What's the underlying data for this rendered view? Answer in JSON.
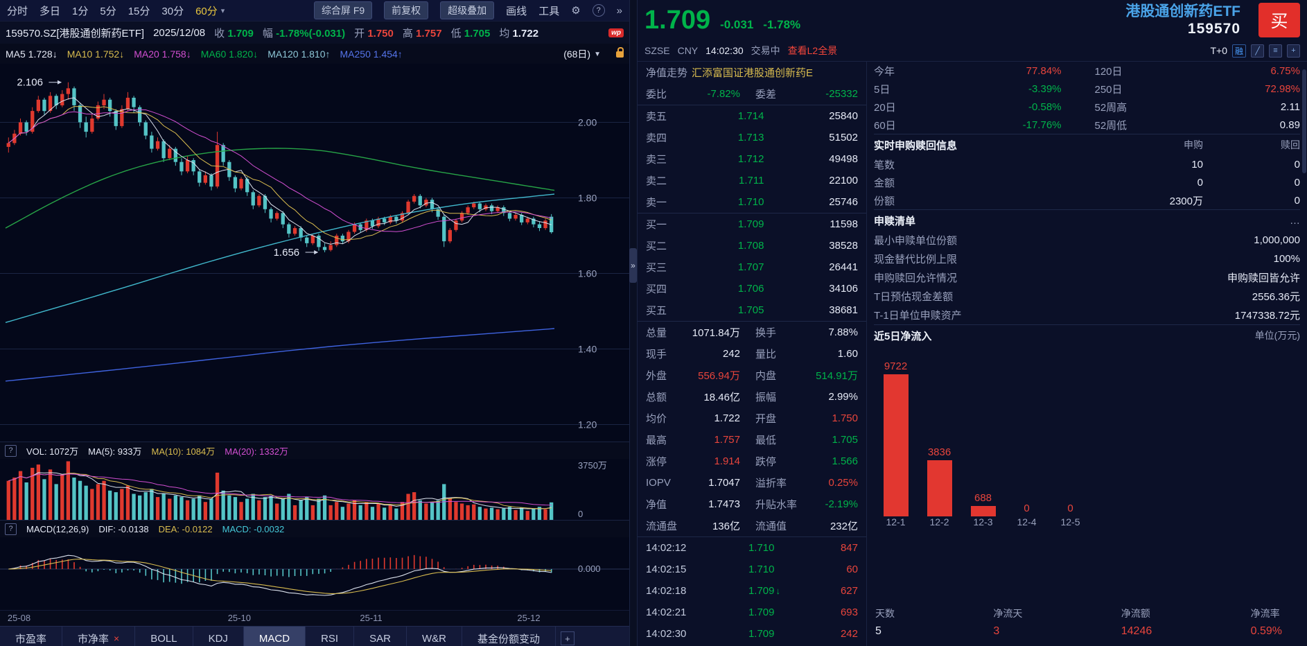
{
  "colors": {
    "up_red": "#e0392e",
    "down_text_green": "#00b34a",
    "candle_down_cyan": "#54c4c6",
    "yellow": "#d9bc4f",
    "magenta": "#d24fd2",
    "ma250_blue": "#3f63e0",
    "ma120_cyan": "#41b9cd",
    "ma60_green": "#27a447",
    "name_blue": "#4aa3e8",
    "buy_button_red": "#e22f2a",
    "background": "#0b1026"
  },
  "toolbar": {
    "periods": [
      "分时",
      "多日",
      "1分",
      "5分",
      "15分",
      "30分",
      "60分"
    ],
    "caret": "▾",
    "buttons": [
      "综合屏 F9",
      "前复权",
      "超级叠加"
    ],
    "links": [
      "画线",
      "工具"
    ],
    "gear": "⚙",
    "help": "?",
    "more": "»"
  },
  "infobar": {
    "symbol": "159570.SZ[港股通创新药ETF]",
    "date": "2025/12/08",
    "close_label": "收",
    "close": "1.709",
    "chg_label": "幅",
    "chg": "-1.78%(-0.031)",
    "open_label": "开",
    "open": "1.750",
    "high_label": "高",
    "high": "1.757",
    "low_label": "低",
    "low": "1.705",
    "avg_label": "均",
    "avg": "1.722",
    "wp_badge": "wp"
  },
  "ma_bar": {
    "ma5": "MA5 1.728↓",
    "ma10": "MA10 1.752↓",
    "ma20": "MA20 1.758↓",
    "ma60": "MA60 1.820↓",
    "ma120": "MA120 1.810↑",
    "ma250": "MA250 1.454↑",
    "range": "(68日)",
    "range_caret": "▼"
  },
  "vol_header": {
    "help": "?",
    "vol": "VOL: 1072万",
    "ma5": "MA(5): 933万",
    "ma10": "MA(10): 1084万",
    "ma20": "MA(20): 1332万",
    "scale_top": "3750万",
    "scale_zero": "0"
  },
  "macd_header": {
    "help": "?",
    "formula": "MACD(12,26,9)",
    "dif": "DIF: -0.0138",
    "dea": "DEA: -0.0122",
    "macd": "MACD: -0.0032",
    "scale_zero": "0.000"
  },
  "x_labels": [
    {
      "text": "25-08",
      "f": 0.012
    },
    {
      "text": "25-10",
      "f": 0.362
    },
    {
      "text": "25-11",
      "f": 0.572
    },
    {
      "text": "25-12",
      "f": 0.822
    }
  ],
  "tabs": {
    "items": [
      "市盈率",
      "市净率",
      "BOLL",
      "KDJ",
      "MACD",
      "RSI",
      "SAR",
      "W&R",
      "基金份额变动"
    ],
    "active": "MACD",
    "close_x": "×",
    "add": "+"
  },
  "quote": {
    "price": "1.709",
    "change": "-0.031",
    "change_pct": "-1.78%",
    "name": "港股通创新药ETF",
    "code": "159570",
    "buy_label": "买",
    "exchange": "SZSE",
    "currency": "CNY",
    "time": "14:02:30",
    "status": "交易中",
    "l2_link": "查看L2全景",
    "t0": "T+0",
    "rong": "融"
  },
  "book": {
    "nav_label": "净值走势",
    "nav_value": "汇添富国证港股通创新药E",
    "wb_label": "委比",
    "wb": "-7.82%",
    "wc_label": "委差",
    "wc": "-25332",
    "sells": [
      {
        "l": "卖五",
        "p": "1.714",
        "v": "25840"
      },
      {
        "l": "卖四",
        "p": "1.713",
        "v": "51502"
      },
      {
        "l": "卖三",
        "p": "1.712",
        "v": "49498"
      },
      {
        "l": "卖二",
        "p": "1.711",
        "v": "22100"
      },
      {
        "l": "卖一",
        "p": "1.710",
        "v": "25746"
      }
    ],
    "buys": [
      {
        "l": "买一",
        "p": "1.709",
        "v": "11598"
      },
      {
        "l": "买二",
        "p": "1.708",
        "v": "38528"
      },
      {
        "l": "买三",
        "p": "1.707",
        "v": "26441"
      },
      {
        "l": "买四",
        "p": "1.706",
        "v": "34106"
      },
      {
        "l": "买五",
        "p": "1.705",
        "v": "38681"
      }
    ]
  },
  "stats": [
    {
      "l1": "总量",
      "v1": "1071.84万",
      "l2": "换手",
      "v2": "7.88%"
    },
    {
      "l1": "现手",
      "v1": "242",
      "l2": "量比",
      "v2": "1.60"
    },
    {
      "l1": "外盘",
      "v1": "556.94万",
      "l2": "内盘",
      "v2": "514.91万"
    },
    {
      "l1": "总额",
      "v1": "18.46亿",
      "l2": "振幅",
      "v2": "2.99%"
    },
    {
      "l1": "均价",
      "v1": "1.722",
      "l2": "开盘",
      "v2": "1.750"
    },
    {
      "l1": "最高",
      "v1": "1.757",
      "l2": "最低",
      "v2": "1.705"
    },
    {
      "l1": "涨停",
      "v1": "1.914",
      "l2": "跌停",
      "v2": "1.566"
    },
    {
      "l1": "IOPV",
      "v1": "1.7047",
      "l2": "溢折率",
      "v2": "0.25%"
    },
    {
      "l1": "净值",
      "v1": "1.7473",
      "l2": "升贴水率",
      "v2": "-2.19%"
    },
    {
      "l1": "流通盘",
      "v1": "136亿",
      "l2": "流通值",
      "v2": "232亿"
    }
  ],
  "ticks": [
    {
      "t": "14:02:12",
      "p": "1.710",
      "arrow": "",
      "v": "847"
    },
    {
      "t": "14:02:15",
      "p": "1.710",
      "arrow": "",
      "v": "60"
    },
    {
      "t": "14:02:18",
      "p": "1.709",
      "arrow": "↓",
      "v": "627"
    },
    {
      "t": "14:02:21",
      "p": "1.709",
      "arrow": "",
      "v": "693"
    },
    {
      "t": "14:02:30",
      "p": "1.709",
      "arrow": "",
      "v": "242"
    }
  ],
  "returns": [
    {
      "l1": "今年",
      "v1": "77.84%",
      "l2": "120日",
      "v2": "6.75%"
    },
    {
      "l1": "5日",
      "v1": "-3.39%",
      "l2": "250日",
      "v2": "72.98%"
    },
    {
      "l1": "20日",
      "v1": "-0.58%",
      "l2": "52周高",
      "v2": "2.11"
    },
    {
      "l1": "60日",
      "v1": "-17.76%",
      "l2": "52周低",
      "v2": "0.89"
    }
  ],
  "subscription": {
    "title": "实时申购赎回信息",
    "col_a": "申购",
    "col_b": "赎回",
    "rows": [
      {
        "l": "笔数",
        "a": "10",
        "b": "0"
      },
      {
        "l": "金额",
        "a": "0",
        "b": "0"
      },
      {
        "l": "份额",
        "a": "2300万",
        "b": "0"
      }
    ]
  },
  "redemption": {
    "title": "申赎清单",
    "more": "…",
    "rows": [
      {
        "l": "最小申赎单位份额",
        "v": "1,000,000"
      },
      {
        "l": "现金替代比例上限",
        "v": "100%"
      },
      {
        "l": "申购赎回允许情况",
        "v": "申购赎回皆允许"
      },
      {
        "l": "T日预估现金差额",
        "v": "2556.36元"
      },
      {
        "l": "T-1日单位申赎资产",
        "v": "1747338.72元"
      }
    ]
  },
  "flows": {
    "title": "近5日净流入",
    "unit": "单位(万元)",
    "categories": [
      "12-1",
      "12-2",
      "12-3",
      "12-4",
      "12-5"
    ],
    "values": [
      9722,
      3836,
      688,
      0,
      0
    ]
  },
  "flow_stats": [
    {
      "l": "天数",
      "v": "5"
    },
    {
      "l": "净流天",
      "v": "3"
    },
    {
      "l": "净流额",
      "v": "14246"
    },
    {
      "l": "净流率",
      "v": "0.59%"
    }
  ],
  "chart_data": {
    "type": "candlestick",
    "title": "159570.SZ 港股通创新药ETF 60分K线",
    "price_range": [
      1.155,
      2.155
    ],
    "gridlines": [
      1.2,
      1.4,
      1.6,
      1.8,
      2.0
    ],
    "x_axis_labels": [
      "25-08",
      "25-10",
      "25-11",
      "25-12"
    ],
    "annotations": [
      {
        "text": "2.106",
        "index": 10,
        "price": 2.106
      },
      {
        "text": "1.656",
        "index": 53,
        "price": 1.656
      }
    ],
    "vol_axis_max_wan": 3750,
    "macd_params": "12,26,9",
    "ma_overlays": {
      "ma60_green": [
        [
          0,
          1.72
        ],
        [
          0.1,
          1.8
        ],
        [
          0.2,
          1.865
        ],
        [
          0.3,
          1.905
        ],
        [
          0.42,
          1.93
        ],
        [
          0.55,
          1.932
        ],
        [
          0.65,
          1.908
        ],
        [
          0.75,
          1.878
        ],
        [
          0.88,
          1.848
        ],
        [
          1,
          1.82
        ]
      ],
      "ma120_cyan": [
        [
          0,
          1.47
        ],
        [
          0.2,
          1.555
        ],
        [
          0.4,
          1.645
        ],
        [
          0.6,
          1.72
        ],
        [
          0.8,
          1.78
        ],
        [
          1,
          1.81
        ]
      ],
      "ma250_blue": [
        [
          0,
          1.315
        ],
        [
          0.3,
          1.36
        ],
        [
          0.6,
          1.41
        ],
        [
          1,
          1.454
        ]
      ]
    },
    "candles_ohlcv": [
      [
        1.935,
        1.96,
        1.92,
        1.945,
        2400
      ],
      [
        1.945,
        1.98,
        1.94,
        1.97,
        2600
      ],
      [
        1.97,
        2.01,
        1.965,
        2.0,
        3000
      ],
      [
        2.0,
        2.005,
        1.965,
        1.975,
        2300
      ],
      [
        1.975,
        2.04,
        1.97,
        2.03,
        3200
      ],
      [
        2.03,
        2.07,
        2.025,
        2.06,
        3400
      ],
      [
        2.06,
        2.065,
        2.02,
        2.03,
        2500
      ],
      [
        2.03,
        2.08,
        2.025,
        2.07,
        3100
      ],
      [
        2.07,
        2.075,
        2.035,
        2.045,
        2200
      ],
      [
        2.045,
        2.085,
        2.04,
        2.075,
        2800
      ],
      [
        2.075,
        2.106,
        2.06,
        2.09,
        3600
      ],
      [
        2.09,
        2.095,
        2.03,
        2.045,
        2600
      ],
      [
        2.045,
        2.05,
        1.985,
        2.0,
        2400
      ],
      [
        2.0,
        2.015,
        1.96,
        1.975,
        2100
      ],
      [
        1.975,
        2.02,
        1.97,
        2.01,
        1900
      ],
      [
        2.01,
        2.055,
        2.005,
        2.045,
        2200
      ],
      [
        2.045,
        2.075,
        2.035,
        2.06,
        2400
      ],
      [
        2.06,
        2.065,
        2.015,
        2.03,
        1800
      ],
      [
        2.03,
        2.035,
        1.98,
        1.99,
        1700
      ],
      [
        1.99,
        2.045,
        1.985,
        2.035,
        1900
      ],
      [
        2.035,
        2.08,
        2.03,
        2.065,
        2100
      ],
      [
        2.065,
        2.07,
        2.025,
        2.04,
        1600
      ],
      [
        2.04,
        2.045,
        1.99,
        2.0,
        1500
      ],
      [
        2.0,
        2.005,
        1.955,
        1.965,
        1700
      ],
      [
        1.965,
        1.975,
        1.92,
        1.93,
        1900
      ],
      [
        1.93,
        1.96,
        1.925,
        1.95,
        1400
      ],
      [
        1.95,
        1.955,
        1.895,
        1.905,
        1600
      ],
      [
        1.905,
        1.94,
        1.9,
        1.93,
        1300
      ],
      [
        1.93,
        1.935,
        1.885,
        1.895,
        1500
      ],
      [
        1.895,
        1.905,
        1.86,
        1.87,
        1400
      ],
      [
        1.87,
        1.91,
        1.865,
        1.9,
        1200
      ],
      [
        1.9,
        1.905,
        1.86,
        1.87,
        1300
      ],
      [
        1.87,
        1.875,
        1.83,
        1.84,
        1500
      ],
      [
        1.84,
        1.87,
        1.835,
        1.86,
        1100
      ],
      [
        1.86,
        1.865,
        1.82,
        1.83,
        1300
      ],
      [
        1.83,
        1.975,
        1.825,
        1.94,
        2900
      ],
      [
        1.94,
        1.945,
        1.885,
        1.895,
        1800
      ],
      [
        1.895,
        1.9,
        1.845,
        1.855,
        1500
      ],
      [
        1.855,
        1.86,
        1.815,
        1.825,
        1400
      ],
      [
        1.825,
        1.855,
        1.82,
        1.85,
        1100
      ],
      [
        1.85,
        1.855,
        1.805,
        1.815,
        1300
      ],
      [
        1.815,
        1.82,
        1.77,
        1.78,
        1600
      ],
      [
        1.78,
        1.81,
        1.775,
        1.805,
        1200
      ],
      [
        1.805,
        1.81,
        1.76,
        1.77,
        1400
      ],
      [
        1.77,
        1.775,
        1.735,
        1.745,
        1500
      ],
      [
        1.745,
        1.765,
        1.74,
        1.76,
        1000
      ],
      [
        1.76,
        1.765,
        1.72,
        1.73,
        1300
      ],
      [
        1.73,
        1.735,
        1.695,
        1.705,
        1600
      ],
      [
        1.705,
        1.725,
        1.7,
        1.72,
        900
      ],
      [
        1.72,
        1.725,
        1.685,
        1.695,
        1200
      ],
      [
        1.695,
        1.7,
        1.67,
        1.68,
        1400
      ],
      [
        1.68,
        1.705,
        1.675,
        1.7,
        900
      ],
      [
        1.7,
        1.705,
        1.66,
        1.67,
        1300
      ],
      [
        1.67,
        1.68,
        1.656,
        1.662,
        1500
      ],
      [
        1.662,
        1.685,
        1.658,
        1.675,
        900
      ],
      [
        1.675,
        1.705,
        1.67,
        1.7,
        1100
      ],
      [
        1.7,
        1.705,
        1.678,
        1.685,
        800
      ],
      [
        1.685,
        1.715,
        1.68,
        1.71,
        1000
      ],
      [
        1.71,
        1.735,
        1.705,
        1.73,
        1200
      ],
      [
        1.73,
        1.735,
        1.708,
        1.715,
        900
      ],
      [
        1.715,
        1.745,
        1.71,
        1.74,
        1100
      ],
      [
        1.74,
        1.745,
        1.718,
        1.725,
        800
      ],
      [
        1.725,
        1.75,
        1.72,
        1.745,
        1000
      ],
      [
        1.745,
        1.75,
        1.728,
        1.735,
        750
      ],
      [
        1.735,
        1.755,
        1.73,
        1.75,
        900
      ],
      [
        1.75,
        1.755,
        1.732,
        1.74,
        700
      ],
      [
        1.74,
        1.765,
        1.735,
        1.76,
        1100
      ],
      [
        1.76,
        1.795,
        1.755,
        1.79,
        1600
      ],
      [
        1.79,
        1.81,
        1.785,
        1.805,
        1700
      ],
      [
        1.805,
        1.81,
        1.772,
        1.78,
        1200
      ],
      [
        1.78,
        1.8,
        1.775,
        1.795,
        1000
      ],
      [
        1.795,
        1.8,
        1.762,
        1.77,
        1100
      ],
      [
        1.77,
        1.775,
        1.742,
        1.75,
        1200
      ],
      [
        1.75,
        1.755,
        1.67,
        1.685,
        2200
      ],
      [
        1.685,
        1.72,
        1.68,
        1.715,
        1300
      ],
      [
        1.715,
        1.745,
        1.71,
        1.74,
        1100
      ],
      [
        1.74,
        1.765,
        1.735,
        1.76,
        1000
      ],
      [
        1.76,
        1.78,
        1.755,
        1.775,
        900
      ],
      [
        1.775,
        1.79,
        1.77,
        1.785,
        950
      ],
      [
        1.785,
        1.79,
        1.762,
        1.77,
        800
      ],
      [
        1.77,
        1.785,
        1.765,
        1.78,
        700
      ],
      [
        1.78,
        1.785,
        1.757,
        1.765,
        750
      ],
      [
        1.765,
        1.78,
        1.76,
        1.775,
        650
      ],
      [
        1.775,
        1.78,
        1.752,
        1.76,
        700
      ],
      [
        1.76,
        1.765,
        1.738,
        1.745,
        800
      ],
      [
        1.745,
        1.76,
        1.74,
        1.755,
        600
      ],
      [
        1.755,
        1.76,
        1.728,
        1.735,
        750
      ],
      [
        1.735,
        1.75,
        1.73,
        1.745,
        550
      ],
      [
        1.745,
        1.75,
        1.722,
        1.73,
        700
      ],
      [
        1.73,
        1.738,
        1.712,
        1.72,
        800
      ],
      [
        1.72,
        1.745,
        1.715,
        1.74,
        650
      ],
      [
        1.75,
        1.757,
        1.705,
        1.709,
        1072
      ]
    ]
  }
}
